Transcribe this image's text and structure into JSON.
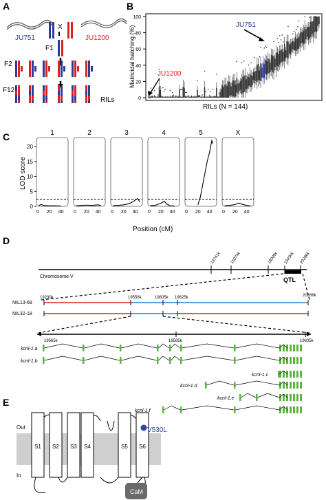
{
  "panels": {
    "a": "A",
    "b": "B",
    "c": "C",
    "d": "D",
    "e": "E"
  },
  "panel_a": {
    "parent1": "JU751",
    "parent2": "JU1200",
    "cross": "X",
    "f1": "F1",
    "f2": "F2",
    "f12": "F12",
    "rils": "RILs",
    "colors": {
      "ju751": "#2b3a9a",
      "ju1200": "#e0201f"
    }
  },
  "panel_b": {
    "ylabel": "Matricidal hatching (%)",
    "xlabel": "RILs (N = 144)",
    "yticks": [
      "0",
      "20",
      "40",
      "60",
      "80",
      "100"
    ],
    "label_ju751": "JU751",
    "label_ju1200": "JU1200",
    "colors": {
      "ju751": "#2b3a9a",
      "ju1200": "#e0201f"
    }
  },
  "chart_data": {
    "type": "line",
    "xlabel": "Position (cM)",
    "ylabel": "LOD score",
    "ylim": [
      0,
      23
    ],
    "xticks": [
      "0",
      "20",
      "40"
    ],
    "yticks": [
      "0",
      "5",
      "10",
      "15",
      "20"
    ],
    "threshold": 2.3,
    "series": [
      {
        "name": "1",
        "x": [
          2,
          6,
          10,
          20,
          30,
          40
        ],
        "values": [
          0.3,
          0.6,
          0.3,
          0.2,
          0.2,
          0.1
        ]
      },
      {
        "name": "2",
        "x": [
          2,
          10,
          20,
          30,
          40,
          45
        ],
        "values": [
          0.2,
          0.3,
          0.4,
          0.3,
          0.5,
          0.3
        ]
      },
      {
        "name": "3",
        "x": [
          2,
          10,
          20,
          30,
          38,
          44,
          48
        ],
        "values": [
          0.3,
          0.3,
          0.5,
          0.9,
          1.8,
          2.6,
          1.5
        ]
      },
      {
        "name": "4",
        "x": [
          2,
          10,
          20,
          26,
          30,
          36,
          44
        ],
        "values": [
          0.3,
          0.3,
          1.0,
          1.7,
          0.8,
          0.2,
          0.1
        ]
      },
      {
        "name": "5",
        "x": [
          20,
          24,
          28,
          32,
          36,
          40,
          44,
          46
        ],
        "values": [
          0.5,
          3,
          7,
          11,
          15,
          18,
          22,
          21
        ]
      },
      {
        "name": "X",
        "x": [
          2,
          10,
          20,
          26,
          32,
          40,
          46
        ],
        "values": [
          0.2,
          0.3,
          0.6,
          1.1,
          0.7,
          0.3,
          0.2
        ]
      }
    ]
  },
  "panel_d": {
    "chromosome": "Chromosome V",
    "marks": [
      "13741k",
      "15074k",
      "18009k",
      "19230k",
      "20286k"
    ],
    "qtl": "QTL",
    "nil1": "NIL13-69",
    "nil2": "NIL32-18",
    "nil_ticks": [
      "19230k",
      "19556k",
      "19605k",
      "19625k",
      "20286k"
    ],
    "gene_ticks": [
      "19565k",
      "19585k",
      "19605k"
    ],
    "isoforms": [
      "kcnl-1.a",
      "kcnl-1.b",
      "kcnl-1.c",
      "kcnl-1.d",
      "kcnl-1.e",
      "kcnl-1.f"
    ],
    "colors": {
      "red": "#e0201f",
      "blue": "#2b7fc9",
      "exon": "#5cb540"
    }
  },
  "panel_e": {
    "out": "Out",
    "in": "In",
    "segments": [
      "S1",
      "S2",
      "S3",
      "S4",
      "S5",
      "S6"
    ],
    "mutation": "V530L",
    "cam": "CaM",
    "colors": {
      "membrane": "#cfcfcf",
      "mutation": "#3245a8",
      "cam": "#6a6a6a"
    }
  }
}
